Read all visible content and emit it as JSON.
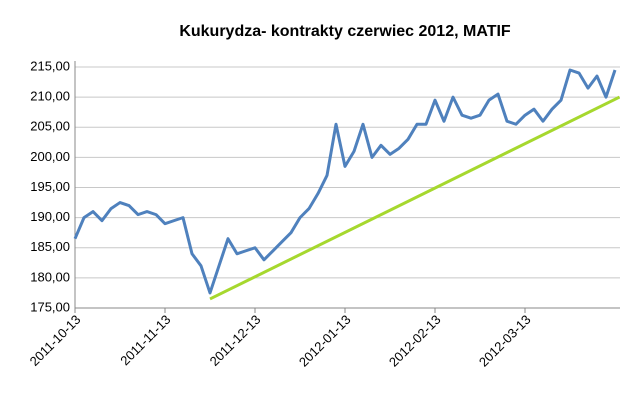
{
  "chart_data": {
    "type": "line",
    "title": "Kukurydza- kontrakty czerwiec 2012, MATIF",
    "categories": [
      "2011-10-13",
      null,
      null,
      null,
      null,
      null,
      null,
      null,
      null,
      null,
      "2011-11-13",
      null,
      null,
      null,
      null,
      null,
      null,
      null,
      null,
      null,
      "2011-12-13",
      null,
      null,
      null,
      null,
      null,
      null,
      null,
      null,
      null,
      "2012-01-13",
      null,
      null,
      null,
      null,
      null,
      null,
      null,
      null,
      null,
      "2012-02-13",
      null,
      null,
      null,
      null,
      null,
      null,
      null,
      null,
      null,
      "2012-03-13",
      null,
      null,
      null,
      null,
      null,
      null,
      null,
      null,
      null,
      null
    ],
    "series": [
      {
        "color": "#4f81bd",
        "values": [
          186.5,
          190,
          191,
          189.5,
          191.5,
          192.5,
          192,
          190.5,
          191,
          190.5,
          189,
          189.5,
          190,
          184,
          182,
          177.5,
          182,
          186.5,
          184,
          184.5,
          185,
          183,
          184.5,
          186,
          187.5,
          190,
          191.5,
          194,
          197,
          205.5,
          198.5,
          201,
          205.5,
          200,
          202,
          200.5,
          201.5,
          203,
          205.5,
          205.5,
          209.5,
          206,
          210,
          207,
          206.5,
          207,
          209.5,
          210.5,
          206,
          205.5,
          207,
          208,
          206,
          208,
          209.5,
          214.5,
          214,
          211.5,
          213.5,
          210,
          214.5
        ]
      }
    ],
    "trendline": {
      "color": "#a6d82e",
      "x": [
        15,
        60.5
      ],
      "values": [
        176.5,
        210
      ]
    },
    "ylim": [
      175,
      215
    ],
    "yticks": [
      {
        "value": 175,
        "label": "175,00"
      },
      {
        "value": 180,
        "label": "180,00"
      },
      {
        "value": 185,
        "label": "185,00"
      },
      {
        "value": 190,
        "label": "190,00"
      },
      {
        "value": 195,
        "label": "195,00"
      },
      {
        "value": 200,
        "label": "200,00"
      },
      {
        "value": 205,
        "label": "205,00"
      },
      {
        "value": 210,
        "label": "210,00"
      },
      {
        "value": 215,
        "label": "215,00"
      }
    ],
    "grid": true
  }
}
